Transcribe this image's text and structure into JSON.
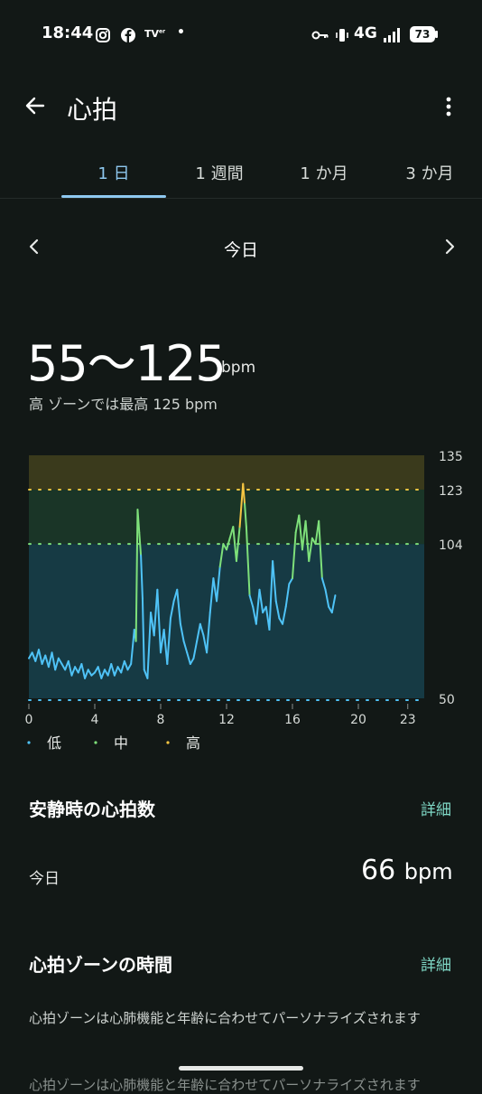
{
  "status_bar": {
    "time": "18:44",
    "network": "4G",
    "battery": "73"
  },
  "app_bar": {
    "title": "心拍"
  },
  "tabs": [
    {
      "label": "1 日",
      "active": true
    },
    {
      "label": "1 週間",
      "active": false
    },
    {
      "label": "1 か月",
      "active": false
    },
    {
      "label": "3 か月",
      "active": false
    }
  ],
  "date_nav": {
    "label": "今日"
  },
  "summary": {
    "range": "55〜125",
    "unit": "bpm",
    "subtitle": "高 ゾーンでは最高 125 bpm"
  },
  "chart_data": {
    "type": "line",
    "y_ticks": [
      "135",
      "123",
      "104",
      "50"
    ],
    "x_ticks": [
      "0",
      "4",
      "8",
      "12",
      "16",
      "20",
      "23"
    ],
    "ylim": [
      50,
      135
    ],
    "xlim": [
      0,
      24
    ],
    "zones": [
      {
        "name": "低",
        "from": 50,
        "to": 104,
        "color": "#163a44"
      },
      {
        "name": "中",
        "from": 104,
        "to": 123,
        "color": "#1a3527"
      },
      {
        "name": "高",
        "from": 123,
        "to": 135,
        "color": "#3a3a1c"
      }
    ],
    "legend": [
      {
        "label": "低",
        "color": "#4fc3f7"
      },
      {
        "label": "中",
        "color": "#7ee07a"
      },
      {
        "label": "高",
        "color": "#f5c542"
      }
    ],
    "series": [
      {
        "x": [
          0,
          0.2,
          0.4,
          0.6,
          0.8,
          1.0,
          1.2,
          1.4,
          1.6,
          1.8,
          2.0,
          2.2,
          2.4,
          2.6,
          2.8,
          3.0,
          3.2,
          3.4,
          3.6,
          3.8,
          4.0,
          4.2,
          4.4,
          4.6,
          4.8,
          5.0,
          5.2,
          5.4,
          5.6,
          5.8,
          6.0,
          6.2,
          6.4,
          6.5,
          6.6,
          6.7,
          6.8,
          6.9,
          7.0,
          7.2,
          7.4,
          7.6,
          7.8,
          8.0,
          8.2,
          8.4,
          8.6,
          8.8,
          9.0,
          9.2,
          9.4,
          9.6,
          9.8,
          10.0,
          10.2,
          10.4,
          10.6,
          10.8,
          11.0,
          11.2,
          11.4,
          11.6,
          11.8,
          12.0,
          12.2,
          12.4,
          12.6,
          12.8,
          13.0,
          13.1,
          13.2,
          13.4,
          13.6,
          13.8,
          14.0,
          14.2,
          14.4,
          14.6,
          14.8,
          15.0,
          15.2,
          15.4,
          15.6,
          15.8,
          16.0,
          16.2,
          16.4,
          16.6,
          16.8,
          17.0,
          17.2,
          17.4,
          17.6,
          17.8,
          18.0,
          18.2,
          18.4,
          18.6
        ],
        "y": [
          64,
          66,
          63,
          67,
          62,
          65,
          61,
          66,
          60,
          64,
          62,
          60,
          63,
          58,
          61,
          59,
          62,
          57,
          60,
          58,
          59,
          61,
          57,
          60,
          58,
          62,
          58,
          61,
          59,
          63,
          60,
          62,
          74,
          70,
          116,
          108,
          100,
          85,
          60,
          57,
          80,
          72,
          88,
          66,
          74,
          62,
          78,
          84,
          88,
          76,
          70,
          66,
          62,
          64,
          70,
          76,
          72,
          66,
          80,
          92,
          84,
          96,
          104,
          102,
          106,
          110,
          98,
          110,
          125,
          118,
          110,
          86,
          82,
          76,
          88,
          80,
          82,
          74,
          98,
          84,
          78,
          76,
          82,
          90,
          92,
          108,
          114,
          102,
          112,
          98,
          106,
          104,
          112,
          92,
          88,
          82,
          80,
          86
        ]
      }
    ]
  },
  "resting": {
    "title": "安静時の心拍数",
    "detail": "詳細",
    "today_label": "今日",
    "value": "66",
    "unit": "bpm"
  },
  "zones_section": {
    "title": "心拍ゾーンの時間",
    "detail": "詳細",
    "description": "心拍ゾーンは心肺機能と年齢に合わせてパーソナライズされます",
    "description_repeat": "心拍ゾーンは心肺機能と年齢に合わせてパーソナライズされます"
  }
}
